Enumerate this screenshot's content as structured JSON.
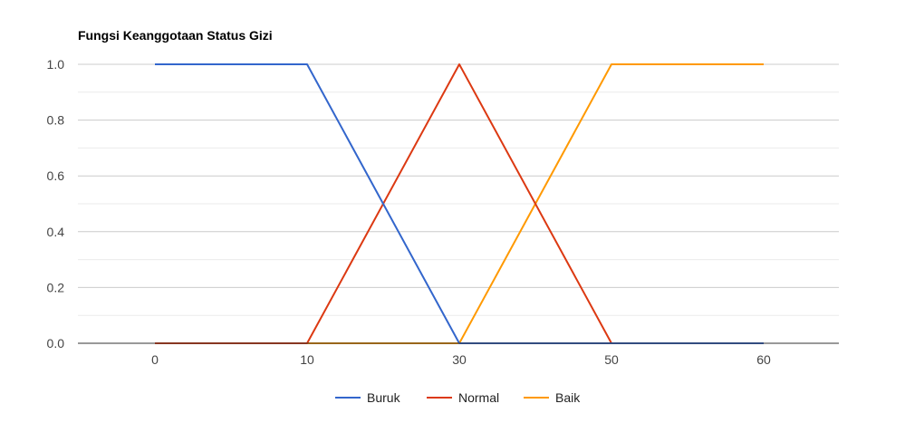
{
  "colors": {
    "background": "#ffffff",
    "grid_major": "#cccccc",
    "grid_minor": "#ebebeb",
    "baseline": "#333333"
  },
  "chart_data": {
    "type": "line",
    "title": "Fungsi Keanggotaan Status Gizi",
    "xlabel": "",
    "ylabel": "",
    "categories": [
      "0",
      "10",
      "30",
      "50",
      "60"
    ],
    "ylim": [
      0,
      1
    ],
    "yticks": [
      "0.0",
      "0.2",
      "0.4",
      "0.6",
      "0.8",
      "1.0"
    ],
    "grid": true,
    "legend_position": "bottom",
    "series": [
      {
        "name": "Buruk",
        "color": "#3366cc",
        "values": [
          1,
          1,
          0,
          0,
          0
        ]
      },
      {
        "name": "Normal",
        "color": "#dc3912",
        "values": [
          0,
          0,
          1,
          0,
          0
        ]
      },
      {
        "name": "Baik",
        "color": "#ff9900",
        "values": [
          0,
          0,
          0,
          1,
          1
        ]
      }
    ]
  }
}
